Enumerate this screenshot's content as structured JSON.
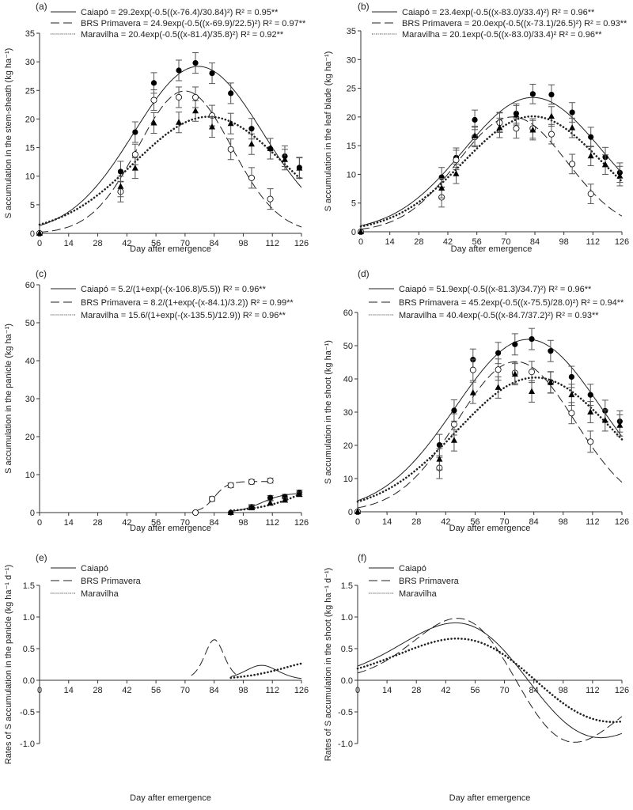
{
  "chart_data": [
    {
      "panel": "(a)",
      "type": "scatter",
      "xlabel": "Day after emergence",
      "ylabel": "S accumulation in the stem-sheath (kg ha⁻¹)",
      "xlim": [
        0,
        126
      ],
      "xticks": [
        0,
        14,
        28,
        42,
        56,
        70,
        84,
        98,
        112,
        126
      ],
      "ylim": [
        0,
        35
      ],
      "yticks": [
        0,
        5,
        10,
        15,
        20,
        25,
        30,
        35
      ],
      "model": "gauss",
      "error_bar": 1.8,
      "series": [
        {
          "name": "Caiapó",
          "equation": "Caiapó = 29.2exp(-0.5((x-76.4)/30.84)²) R² = 0.95**",
          "params": [
            29.2,
            76.4,
            30.84
          ],
          "marker": "filled-circle",
          "line": "solid",
          "x": [
            0,
            39,
            46,
            55,
            67,
            75,
            83,
            92,
            102,
            111,
            118,
            125
          ],
          "y": [
            0,
            10.8,
            17.7,
            26.3,
            28.5,
            29.8,
            28.0,
            24.5,
            18.3,
            14.8,
            13.5,
            11.5
          ]
        },
        {
          "name": "BRS Primavera",
          "equation": "BRS Primavera = 24.9exp(-0.5((x-69.9)/22.5)²) R² = 0.97**",
          "params": [
            24.9,
            69.9,
            22.5
          ],
          "marker": "open-circle",
          "line": "dashed",
          "x": [
            0,
            39,
            46,
            55,
            67,
            75,
            83,
            92,
            102,
            111
          ],
          "y": [
            0,
            7.3,
            13.8,
            23.3,
            23.8,
            23.8,
            20.6,
            14.7,
            9.7,
            6.0
          ]
        },
        {
          "name": "Maravilha",
          "equation": "Maravilha = 20.4exp(-0.5((x-81.4)/35.8)²) R² = 0.92**",
          "params": [
            20.4,
            81.4,
            35.8
          ],
          "marker": "filled-triangle",
          "line": "dotted",
          "x": [
            0,
            39,
            46,
            55,
            67,
            75,
            83,
            92,
            102,
            111,
            118,
            125
          ],
          "y": [
            0,
            8.2,
            11.4,
            19.3,
            19.4,
            21.4,
            18.6,
            19.2,
            15.6,
            14.8,
            12.9,
            11.4
          ]
        }
      ]
    },
    {
      "panel": "(b)",
      "type": "scatter",
      "xlabel": "Day after emergence",
      "ylabel": "S accumulation in the leaf blade (kg ha⁻¹)",
      "xlim": [
        0,
        126
      ],
      "xticks": [
        0,
        14,
        28,
        42,
        56,
        70,
        84,
        98,
        112,
        126
      ],
      "ylim": [
        0,
        35
      ],
      "yticks": [
        0,
        5,
        10,
        15,
        20,
        25,
        30,
        35
      ],
      "model": "gauss",
      "error_bar": 1.7,
      "series": [
        {
          "name": "Caiapó",
          "equation": "Caiapó = 23.4exp(-0.5((x-83.0)/33.4)²) R² = 0.96**",
          "params": [
            23.4,
            83.0,
            33.4
          ],
          "marker": "filled-circle",
          "line": "solid",
          "x": [
            0,
            39,
            46,
            55,
            67,
            75,
            83,
            92,
            102,
            111,
            118,
            125
          ],
          "y": [
            0,
            9.5,
            12.9,
            19.5,
            19.1,
            20.6,
            24.0,
            23.9,
            20.8,
            16.5,
            13.0,
            10.3
          ]
        },
        {
          "name": "BRS Primavera",
          "equation": "BRS Primavera = 20.0exp(-0.5((x-73.1)/26.5)²) R² = 0.93**",
          "params": [
            20.0,
            73.1,
            26.5
          ],
          "marker": "open-circle",
          "line": "dashed",
          "x": [
            0,
            39,
            46,
            55,
            67,
            75,
            83,
            92,
            102,
            111
          ],
          "y": [
            0,
            6.0,
            12.5,
            16.5,
            19.0,
            18.0,
            18.0,
            17.0,
            11.8,
            6.6
          ]
        },
        {
          "name": "Maravilha",
          "equation": "Maravilha = 20.1exp(-0.5((x-83.0)/33.4)² R² = 0.96**",
          "params": [
            20.1,
            83.0,
            33.4
          ],
          "marker": "filled-triangle",
          "line": "dotted",
          "x": [
            0,
            39,
            46,
            55,
            67,
            75,
            83,
            92,
            102,
            111,
            118,
            125
          ],
          "y": [
            0,
            7.6,
            10.1,
            16.7,
            18.1,
            20.3,
            17.7,
            20.1,
            18.1,
            13.2,
            11.7,
            9.7
          ]
        }
      ]
    },
    {
      "panel": "(c)",
      "type": "scatter",
      "xlabel": "Day after emergence",
      "ylabel": "S accumulation in the panicle (kg ha⁻¹)",
      "xlim": [
        0,
        126
      ],
      "xticks": [
        0,
        14,
        28,
        42,
        56,
        70,
        84,
        98,
        112,
        126
      ],
      "ylim": [
        0,
        60
      ],
      "yticks": [
        0,
        10,
        20,
        30,
        40,
        50,
        60
      ],
      "model": "logistic",
      "error_bar": 0.6,
      "series": [
        {
          "name": "Caiapó",
          "equation": "Caiapó = 5.2/(1+exp(-(x-106.8)/5.5)) R² = 0.96**",
          "params": [
            5.2,
            106.8,
            5.5
          ],
          "range": [
            92,
            126
          ],
          "marker": "filled-circle",
          "line": "solid",
          "x": [
            92,
            102,
            111,
            118,
            125
          ],
          "y": [
            0,
            1.5,
            3.9,
            4.2,
            5.3
          ]
        },
        {
          "name": "BRS Primavera",
          "equation": "BRS Primavera = 8.2/(1+exp(-(x-84.1)/3.2)) R² = 0.99**",
          "params": [
            8.2,
            84.1,
            3.2
          ],
          "range": [
            75,
            111
          ],
          "marker": "open-circle",
          "line": "dashed",
          "x": [
            75,
            83,
            92,
            102,
            111
          ],
          "y": [
            0,
            3.6,
            7.2,
            8.1,
            8.4
          ]
        },
        {
          "name": "Maravilha",
          "equation": "Maravilha = 15.6/(1+exp(-(x-135.5)/12.9)) R² = 0.96**",
          "params": [
            15.6,
            135.5,
            12.9
          ],
          "range": [
            92,
            126
          ],
          "marker": "filled-triangle",
          "line": "dotted",
          "x": [
            92,
            102,
            111,
            118,
            125
          ],
          "y": [
            0,
            1.3,
            2.5,
            3.3,
            4.8
          ]
        }
      ]
    },
    {
      "panel": "(d)",
      "type": "scatter",
      "xlabel": "Day after emergence",
      "ylabel": "S accumulation in the shoot (kg ha⁻¹)",
      "xlim": [
        0,
        126
      ],
      "xticks": [
        0,
        14,
        28,
        42,
        56,
        70,
        84,
        98,
        112,
        126
      ],
      "ylim": [
        0,
        60
      ],
      "yticks": [
        0,
        10,
        20,
        30,
        40,
        50,
        60
      ],
      "model": "gauss",
      "error_bar": 3.2,
      "series": [
        {
          "name": "Caiapó",
          "equation": "Caiapó = 51.9exp(-0.5((x-81.3)/34.7)²) R² = 0.96**",
          "params": [
            51.9,
            81.3,
            34.7
          ],
          "marker": "filled-circle",
          "line": "solid",
          "x": [
            0,
            39,
            46,
            55,
            67,
            75,
            83,
            92,
            102,
            111,
            118,
            125
          ],
          "y": [
            0,
            20.1,
            30.5,
            45.8,
            47.8,
            50.4,
            52.0,
            48.4,
            40.6,
            35.2,
            30.4,
            27.2
          ]
        },
        {
          "name": "BRS Primavera",
          "equation": "BRS Primavera = 45.2exp(-0.5((x-75.5)/28.0)²) R² = 0.94**",
          "params": [
            45.2,
            75.5,
            28.0
          ],
          "marker": "open-circle",
          "line": "dashed",
          "x": [
            0,
            39,
            46,
            55,
            67,
            75,
            83,
            92,
            102,
            111
          ],
          "y": [
            0,
            13.2,
            26.3,
            42.7,
            42.8,
            41.8,
            42.1,
            39.0,
            29.7,
            21.1
          ]
        },
        {
          "name": "Maravilha",
          "equation": "Maravilha = 40.4exp(-0.5((x-84.7/37.2)²) R² = 0.93**",
          "params": [
            40.4,
            84.7,
            37.2
          ],
          "marker": "filled-triangle",
          "line": "dotted",
          "x": [
            0,
            39,
            46,
            55,
            67,
            75,
            83,
            92,
            102,
            111,
            118,
            125
          ],
          "y": [
            0,
            15.8,
            21.5,
            35.8,
            37.4,
            41.4,
            36.2,
            38.9,
            35.2,
            30.0,
            27.5,
            26.0
          ]
        }
      ]
    },
    {
      "panel": "(e)",
      "type": "line",
      "xlabel": "Day after emergence",
      "ylabel": "Rates of S accumulation in the panicle (kg ha⁻¹ d⁻¹)",
      "xlim": [
        0,
        126
      ],
      "xticks": [
        0,
        14,
        28,
        42,
        56,
        70,
        84,
        98,
        112,
        126
      ],
      "ylim": [
        -1.0,
        1.5
      ],
      "yticks": [
        -1.0,
        -0.5,
        0.0,
        0.5,
        1.0,
        1.5
      ],
      "model": "logistic-rate",
      "series": [
        {
          "name": "Caiapó",
          "equation": "Caiapó",
          "params": [
            5.2,
            106.8,
            5.5
          ],
          "range": [
            92,
            126
          ],
          "line": "solid"
        },
        {
          "name": "BRS Primavera",
          "equation": "BRS Primavera",
          "params": [
            8.2,
            84.1,
            3.2
          ],
          "range": [
            73,
            96
          ],
          "line": "dashed"
        },
        {
          "name": "Maravilha",
          "equation": "Maravilha",
          "params": [
            15.6,
            135.5,
            12.9
          ],
          "range": [
            92,
            126
          ],
          "line": "dotted"
        }
      ]
    },
    {
      "panel": "(f)",
      "type": "line",
      "xlabel": "Day after emergence",
      "ylabel": "Rates of S accumulation in the shoot (kg ha⁻¹ d⁻¹)",
      "xlim": [
        0,
        126
      ],
      "xticks": [
        0,
        14,
        28,
        42,
        56,
        70,
        84,
        98,
        112,
        126
      ],
      "ylim": [
        -1.0,
        1.5
      ],
      "yticks": [
        -1.0,
        -0.5,
        0.0,
        0.5,
        1.0,
        1.5
      ],
      "model": "gauss-rate",
      "series": [
        {
          "name": "Caiapó",
          "equation": "Caiapó",
          "params": [
            51.9,
            81.3,
            34.7
          ],
          "range": [
            0,
            126
          ],
          "line": "solid"
        },
        {
          "name": "BRS Primavera",
          "equation": "BRS Primavera",
          "params": [
            45.2,
            75.5,
            28.0
          ],
          "range": [
            0,
            126
          ],
          "line": "dashed"
        },
        {
          "name": "Maravilha",
          "equation": "Maravilha",
          "params": [
            40.4,
            84.7,
            37.2
          ],
          "range": [
            0,
            126
          ],
          "line": "dotted"
        }
      ]
    }
  ]
}
